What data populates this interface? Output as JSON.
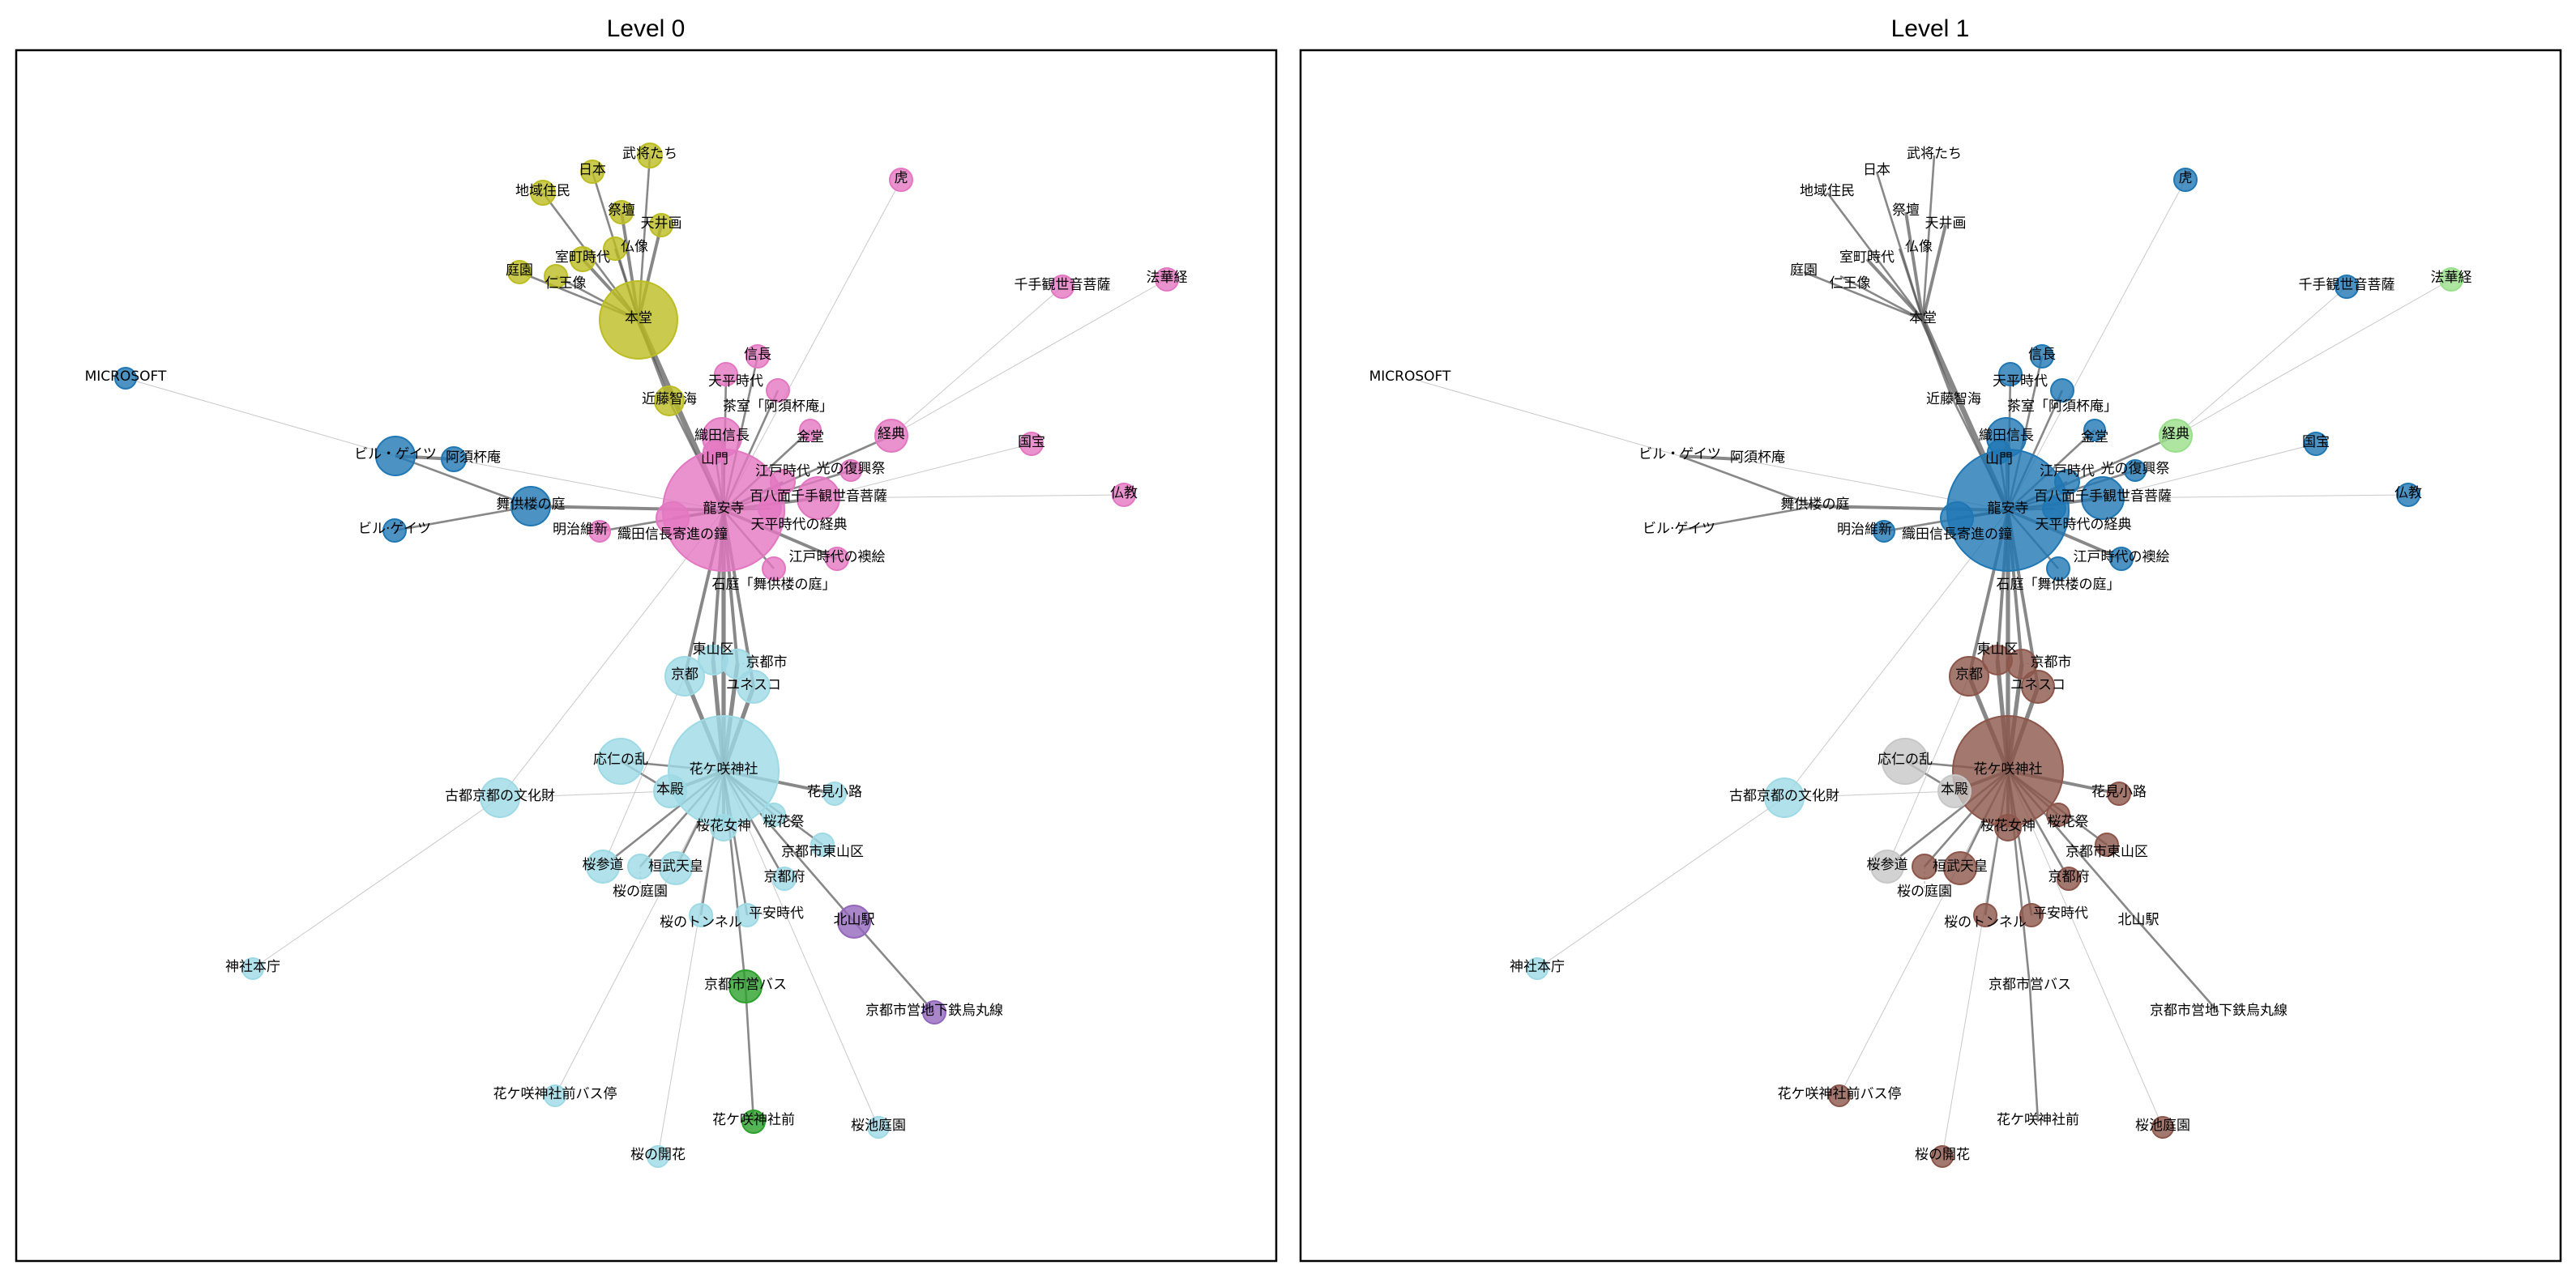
{
  "panels": [
    {
      "title": "Level 0"
    },
    {
      "title": "Level 1"
    }
  ],
  "colors": {
    "olive": "#bcbd22",
    "pink": "#e377c2",
    "blue": "#1f77b4",
    "lightblue": "#9edae5",
    "purple": "#9467bd",
    "green": "#2ca02c",
    "brown": "#8c564b",
    "gray": "#c7c7c7",
    "lightgreen": "#98df8a",
    "edge_strong": "#555555",
    "edge_weak": "#bbbbbb"
  },
  "nodes": [
    {
      "label": "本堂",
      "c0": "olive",
      "c1": "none"
    },
    {
      "label": "武将たち",
      "c0": "olive",
      "c1": "none"
    },
    {
      "label": "日本",
      "c0": "olive",
      "c1": "none"
    },
    {
      "label": "地域住民",
      "c0": "olive",
      "c1": "none"
    },
    {
      "label": "祭壇",
      "c0": "olive",
      "c1": "none"
    },
    {
      "label": "天井画",
      "c0": "olive",
      "c1": "none"
    },
    {
      "label": "仏像",
      "c0": "olive",
      "c1": "none"
    },
    {
      "label": "室町時代",
      "c0": "olive",
      "c1": "none"
    },
    {
      "label": "庭園",
      "c0": "olive",
      "c1": "none"
    },
    {
      "label": "仁王像",
      "c0": "olive",
      "c1": "none"
    },
    {
      "label": "近藤智海",
      "c0": "olive",
      "c1": "none"
    },
    {
      "label": "龍安寺",
      "c0": "pink",
      "c1": "blue"
    },
    {
      "label": "信長",
      "c0": "pink",
      "c1": "blue"
    },
    {
      "label": "天平時代",
      "c0": "pink",
      "c1": "blue"
    },
    {
      "label": "茶室「阿須杯庵」",
      "c0": "pink",
      "c1": "blue"
    },
    {
      "label": "織田信長",
      "c0": "pink",
      "c1": "blue"
    },
    {
      "label": "山門",
      "c0": "pink",
      "c1": "blue"
    },
    {
      "label": "金堂",
      "c0": "pink",
      "c1": "blue"
    },
    {
      "label": "経典",
      "c0": "pink",
      "c1": "lightgreen"
    },
    {
      "label": "虎",
      "c0": "pink",
      "c1": "blue"
    },
    {
      "label": "千手観世音菩薩",
      "c0": "pink",
      "c1": "blue"
    },
    {
      "label": "法華経",
      "c0": "pink",
      "c1": "lightgreen"
    },
    {
      "label": "国宝",
      "c0": "pink",
      "c1": "blue"
    },
    {
      "label": "仏教",
      "c0": "pink",
      "c1": "blue"
    },
    {
      "label": "光の復興祭",
      "c0": "pink",
      "c1": "blue"
    },
    {
      "label": "江戸時代",
      "c0": "pink",
      "c1": "blue"
    },
    {
      "label": "百八面千手観世音菩薩",
      "c0": "pink",
      "c1": "blue"
    },
    {
      "label": "天平時代の経典",
      "c0": "pink",
      "c1": "blue"
    },
    {
      "label": "織田信長寄進の鐘",
      "c0": "pink",
      "c1": "blue"
    },
    {
      "label": "明治維新",
      "c0": "pink",
      "c1": "blue"
    },
    {
      "label": "江戸時代の襖絵",
      "c0": "pink",
      "c1": "blue"
    },
    {
      "label": "石庭「舞供楼の庭」",
      "c0": "pink",
      "c1": "blue"
    },
    {
      "label": "MICROSOFT",
      "c0": "blue",
      "c1": "none"
    },
    {
      "label": "ビル・ゲイツ",
      "c0": "blue",
      "c1": "none"
    },
    {
      "label": "阿須杯庵",
      "c0": "blue",
      "c1": "none"
    },
    {
      "label": "舞供楼の庭",
      "c0": "blue",
      "c1": "none"
    },
    {
      "label": "ビル·ゲイツ",
      "c0": "blue",
      "c1": "none"
    },
    {
      "label": "花ケ咲神社",
      "c0": "lightblue",
      "c1": "brown"
    },
    {
      "label": "京都",
      "c0": "lightblue",
      "c1": "brown"
    },
    {
      "label": "東山区",
      "c0": "lightblue",
      "c1": "brown"
    },
    {
      "label": "京都市",
      "c0": "lightblue",
      "c1": "brown"
    },
    {
      "label": "ユネスコ",
      "c0": "lightblue",
      "c1": "brown"
    },
    {
      "label": "応仁の乱",
      "c0": "lightblue",
      "c1": "gray"
    },
    {
      "label": "本殿",
      "c0": "lightblue",
      "c1": "gray"
    },
    {
      "label": "古都京都の文化財",
      "c0": "lightblue",
      "c1": "lightblue"
    },
    {
      "label": "花見小路",
      "c0": "lightblue",
      "c1": "brown"
    },
    {
      "label": "桜花祭",
      "c0": "lightblue",
      "c1": "brown"
    },
    {
      "label": "桜花女神",
      "c0": "lightblue",
      "c1": "brown"
    },
    {
      "label": "京都市東山区",
      "c0": "lightblue",
      "c1": "brown"
    },
    {
      "label": "桜参道",
      "c0": "lightblue",
      "c1": "gray"
    },
    {
      "label": "桜の庭園",
      "c0": "lightblue",
      "c1": "brown"
    },
    {
      "label": "桓武天皇",
      "c0": "lightblue",
      "c1": "brown"
    },
    {
      "label": "京都府",
      "c0": "lightblue",
      "c1": "brown"
    },
    {
      "label": "桜のトンネル",
      "c0": "lightblue",
      "c1": "brown"
    },
    {
      "label": "平安時代",
      "c0": "lightblue",
      "c1": "brown"
    },
    {
      "label": "神社本庁",
      "c0": "lightblue",
      "c1": "lightblue"
    },
    {
      "label": "花ケ咲神社前バス停",
      "c0": "lightblue",
      "c1": "brown"
    },
    {
      "label": "桜の開花",
      "c0": "lightblue",
      "c1": "brown"
    },
    {
      "label": "桜池庭園",
      "c0": "lightblue",
      "c1": "brown"
    },
    {
      "label": "北山駅",
      "c0": "purple",
      "c1": "none"
    },
    {
      "label": "京都市営地下鉄烏丸線",
      "c0": "purple",
      "c1": "none"
    },
    {
      "label": "京都市営バス",
      "c0": "green",
      "c1": "none"
    },
    {
      "label": "花ケ咲神社前",
      "c0": "green",
      "c1": "none"
    }
  ],
  "edges": [
    [
      "本堂",
      "武将たち",
      2
    ],
    [
      "本堂",
      "日本",
      2
    ],
    [
      "本堂",
      "地域住民",
      2
    ],
    [
      "本堂",
      "祭壇",
      3
    ],
    [
      "本堂",
      "天井画",
      3
    ],
    [
      "本堂",
      "仏像",
      2
    ],
    [
      "本堂",
      "室町時代",
      3
    ],
    [
      "本堂",
      "庭園",
      2
    ],
    [
      "本堂",
      "仁王像",
      2
    ],
    [
      "本堂",
      "龍安寺",
      5
    ],
    [
      "本堂",
      "近藤智海",
      3
    ],
    [
      "近藤智海",
      "龍安寺",
      2
    ],
    [
      "龍安寺",
      "信長",
      2
    ],
    [
      "龍安寺",
      "天平時代",
      2
    ],
    [
      "龍安寺",
      "茶室「阿須杯庵」",
      2
    ],
    [
      "龍安寺",
      "織田信長",
      3
    ],
    [
      "龍安寺",
      "山門",
      2
    ],
    [
      "龍安寺",
      "金堂",
      2
    ],
    [
      "龍安寺",
      "経典",
      2
    ],
    [
      "龍安寺",
      "虎",
      1
    ],
    [
      "龍安寺",
      "光の復興祭",
      2
    ],
    [
      "龍安寺",
      "江戸時代",
      2
    ],
    [
      "龍安寺",
      "百八面千手観世音菩薩",
      3
    ],
    [
      "龍安寺",
      "天平時代の経典",
      2
    ],
    [
      "龍安寺",
      "織田信長寄進の鐘",
      3
    ],
    [
      "龍安寺",
      "明治維新",
      2
    ],
    [
      "龍安寺",
      "江戸時代の襖絵",
      3
    ],
    [
      "龍安寺",
      "石庭「舞供楼の庭」",
      2
    ],
    [
      "経典",
      "千手観世音菩薩",
      1
    ],
    [
      "経典",
      "法華経",
      1
    ],
    [
      "百八面千手観世音菩薩",
      "国宝",
      1
    ],
    [
      "百八面千手観世音菩薩",
      "仏教",
      1
    ],
    [
      "MICROSOFT",
      "ビル・ゲイツ",
      1
    ],
    [
      "ビル・ゲイツ",
      "阿須杯庵",
      3
    ],
    [
      "ビル・ゲイツ",
      "舞供楼の庭",
      2
    ],
    [
      "ビル·ゲイツ",
      "舞供楼の庭",
      2
    ],
    [
      "舞供楼の庭",
      "龍安寺",
      3
    ],
    [
      "阿須杯庵",
      "龍安寺",
      1
    ],
    [
      "織田信長",
      "龍安寺",
      1
    ],
    [
      "龍安寺",
      "花ケ咲神社",
      4
    ],
    [
      "龍安寺",
      "京都",
      3
    ],
    [
      "龍安寺",
      "東山区",
      3
    ],
    [
      "龍安寺",
      "京都市",
      3
    ],
    [
      "龍安寺",
      "ユネスコ",
      3
    ],
    [
      "花ケ咲神社",
      "京都",
      4
    ],
    [
      "花ケ咲神社",
      "東山区",
      4
    ],
    [
      "花ケ咲神社",
      "京都市",
      4
    ],
    [
      "花ケ咲神社",
      "ユネスコ",
      4
    ],
    [
      "花ケ咲神社",
      "応仁の乱",
      2
    ],
    [
      "花ケ咲神社",
      "本殿",
      3
    ],
    [
      "応仁の乱",
      "本殿",
      2
    ],
    [
      "花ケ咲神社",
      "花見小路",
      3
    ],
    [
      "花ケ咲神社",
      "桜花祭",
      2
    ],
    [
      "花ケ咲神社",
      "桜花女神",
      3
    ],
    [
      "花ケ咲神社",
      "京都市東山区",
      2
    ],
    [
      "花ケ咲神社",
      "桜参道",
      2
    ],
    [
      "花ケ咲神社",
      "桜の庭園",
      2
    ],
    [
      "花ケ咲神社",
      "桓武天皇",
      2
    ],
    [
      "花ケ咲神社",
      "京都府",
      2
    ],
    [
      "花ケ咲神社",
      "桜のトンネル",
      2
    ],
    [
      "花ケ咲神社",
      "平安時代",
      2
    ],
    [
      "花ケ咲神社",
      "北山駅",
      2
    ],
    [
      "北山駅",
      "京都市営地下鉄烏丸線",
      2
    ],
    [
      "花ケ咲神社",
      "京都市営バス",
      2
    ],
    [
      "京都市営バス",
      "花ケ咲神社前",
      2
    ],
    [
      "本殿",
      "古都京都の文化財",
      1
    ],
    [
      "古都京都の文化財",
      "神社本庁",
      1
    ],
    [
      "古都京都の文化財",
      "龍安寺",
      1
    ],
    [
      "花ケ咲神社",
      "花ケ咲神社前バス停",
      1
    ],
    [
      "花ケ咲神社",
      "桜の開花",
      1
    ],
    [
      "花ケ咲神社",
      "桜池庭園",
      1
    ],
    [
      "桜参道",
      "京都",
      1
    ]
  ]
}
